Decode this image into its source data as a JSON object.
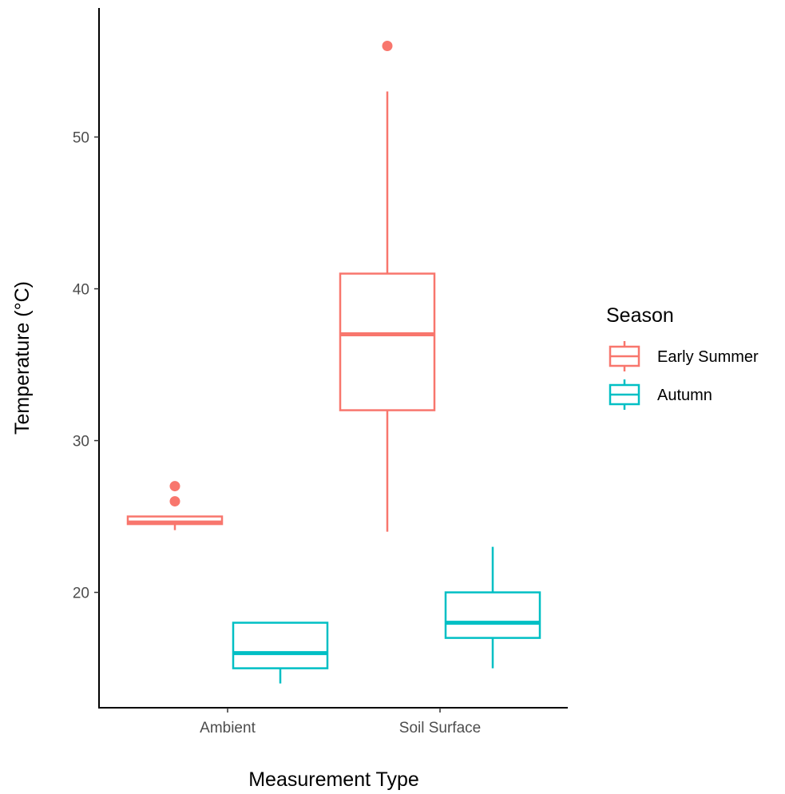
{
  "chart_data": {
    "type": "boxplot",
    "xlabel": "Measurement Type",
    "ylabel": "Temperature (°C)",
    "categories": [
      "Ambient",
      "Soil Surface"
    ],
    "ylim": [
      12.4,
      58.5
    ],
    "yticks": [
      20,
      30,
      40,
      50
    ],
    "grid": false,
    "legend": {
      "title": "Season",
      "position": "right"
    },
    "series": [
      {
        "name": "Early Summer",
        "color": "#F8766D",
        "boxes": [
          {
            "category": "Ambient",
            "whisker_low": 24.1,
            "q1": 24.5,
            "median": 24.6,
            "q3": 25.0,
            "whisker_high": 25.0,
            "outliers": [
              26,
              27
            ]
          },
          {
            "category": "Soil Surface",
            "whisker_low": 24,
            "q1": 32,
            "median": 37,
            "q3": 41,
            "whisker_high": 53,
            "outliers": [
              56
            ]
          }
        ]
      },
      {
        "name": "Autumn",
        "color": "#00BFC4",
        "boxes": [
          {
            "category": "Ambient",
            "whisker_low": 14,
            "q1": 15,
            "median": 16,
            "q3": 18,
            "whisker_high": 18,
            "outliers": []
          },
          {
            "category": "Soil Surface",
            "whisker_low": 15,
            "q1": 17,
            "median": 18,
            "q3": 20,
            "whisker_high": 23,
            "outliers": []
          }
        ]
      }
    ]
  }
}
